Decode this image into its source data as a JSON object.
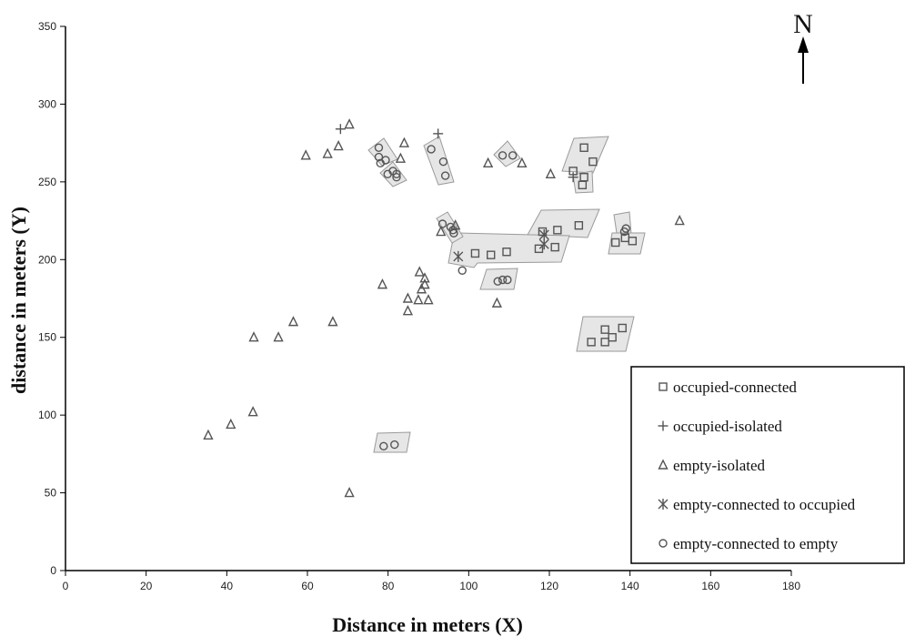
{
  "chart_data": {
    "type": "scatter",
    "xlabel": "Distance in meters (X)",
    "ylabel": "distance in meters (Y)",
    "xlim": [
      0,
      180
    ],
    "ylim": [
      0,
      350
    ],
    "xticks": [
      0,
      20,
      40,
      60,
      80,
      100,
      120,
      140,
      160,
      180
    ],
    "yticks": [
      0,
      50,
      100,
      150,
      200,
      250,
      300,
      350
    ],
    "grid": false,
    "legend_position": "bottom-right",
    "north_label": "N",
    "colors": {
      "marker": "#555555",
      "cluster_fill": "#e6e6e6",
      "cluster_stroke": "#9a9a9a",
      "axis": "#000000"
    },
    "series": [
      {
        "name": "occupied-connected",
        "marker": "square",
        "points": [
          [
            128.6,
            272
          ],
          [
            130.8,
            263
          ],
          [
            128.6,
            253
          ],
          [
            128.2,
            248
          ],
          [
            125.9,
            257
          ],
          [
            127.3,
            222
          ],
          [
            122,
            219
          ],
          [
            118.3,
            218
          ],
          [
            117.4,
            207
          ],
          [
            121.4,
            208
          ],
          [
            109.4,
            205
          ],
          [
            105.5,
            203
          ],
          [
            101.6,
            204
          ],
          [
            136.4,
            211
          ],
          [
            138.8,
            214
          ],
          [
            140.6,
            212
          ],
          [
            133.8,
            155
          ],
          [
            135.6,
            150
          ],
          [
            138.1,
            156
          ],
          [
            133.8,
            147
          ],
          [
            130.4,
            147
          ]
        ]
      },
      {
        "name": "occupied-isolated",
        "marker": "plus",
        "points": [
          [
            68.2,
            284
          ],
          [
            92.4,
            281
          ],
          [
            125.9,
            253
          ]
        ]
      },
      {
        "name": "empty-isolated",
        "marker": "triangle",
        "points": [
          [
            70.4,
            287
          ],
          [
            67.7,
            273
          ],
          [
            65,
            268
          ],
          [
            59.6,
            267
          ],
          [
            84,
            275
          ],
          [
            83.1,
            265
          ],
          [
            93.1,
            218
          ],
          [
            96.7,
            222
          ],
          [
            104.8,
            262
          ],
          [
            113.2,
            262
          ],
          [
            120.3,
            255
          ],
          [
            152.3,
            225
          ],
          [
            87.8,
            192
          ],
          [
            89.1,
            188
          ],
          [
            89.1,
            184
          ],
          [
            88.3,
            181
          ],
          [
            87.5,
            174
          ],
          [
            90,
            174
          ],
          [
            84.9,
            175
          ],
          [
            84.9,
            167
          ],
          [
            78.6,
            184
          ],
          [
            107,
            172
          ],
          [
            66.3,
            160
          ],
          [
            56.5,
            160
          ],
          [
            52.8,
            150
          ],
          [
            46.7,
            150
          ],
          [
            46.5,
            102
          ],
          [
            41,
            94
          ],
          [
            35.4,
            87
          ],
          [
            70.4,
            50
          ]
        ]
      },
      {
        "name": "empty-connected to occupied",
        "marker": "asterisk",
        "points": [
          [
            97.4,
            202
          ],
          [
            118.7,
            216
          ],
          [
            118.7,
            210
          ]
        ]
      },
      {
        "name": "empty-connected to empty",
        "marker": "circle",
        "points": [
          [
            77.7,
            272
          ],
          [
            77.7,
            266
          ],
          [
            78.1,
            262
          ],
          [
            79.4,
            264
          ],
          [
            81.2,
            257
          ],
          [
            79.9,
            255
          ],
          [
            82.1,
            255
          ],
          [
            82.1,
            253
          ],
          [
            90.7,
            271
          ],
          [
            93.7,
            263
          ],
          [
            94.2,
            254
          ],
          [
            93.5,
            223
          ],
          [
            95.5,
            221
          ],
          [
            96.1,
            219
          ],
          [
            96.3,
            217
          ],
          [
            98.4,
            193
          ],
          [
            107.2,
            186
          ],
          [
            108.4,
            187
          ],
          [
            109.6,
            187
          ],
          [
            108.4,
            267
          ],
          [
            110.9,
            267
          ],
          [
            139,
            220
          ],
          [
            138.6,
            218
          ],
          [
            78.9,
            80
          ],
          [
            81.6,
            81
          ]
        ]
      }
    ]
  }
}
